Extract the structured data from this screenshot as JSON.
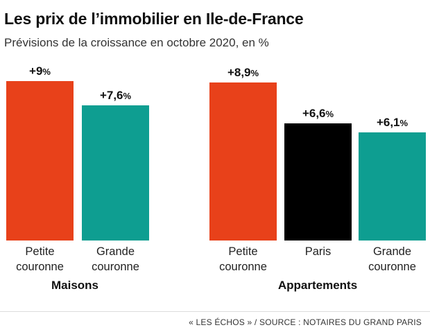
{
  "title": "Les prix de l’immobilier en Ile-de-France",
  "subtitle": "Prévisions de la croissance en octobre 2020, en %",
  "source": "« LES ÉCHOS » / SOURCE : NOTAIRES DU GRAND PARIS",
  "colors": {
    "petite_couronne": "#e8411a",
    "grande_couronne": "#0e9e91",
    "paris": "#000000"
  },
  "chart_data": [
    {
      "type": "bar",
      "group": "Maisons",
      "categories": [
        {
          "label_lines": [
            "Petite",
            "couronne"
          ],
          "value": 9,
          "label_num": "+9",
          "color": "#e8411a"
        },
        {
          "label_lines": [
            "Grande",
            "couronne"
          ],
          "value": 7.6,
          "label_num": "+7,6",
          "color": "#0e9e91"
        }
      ],
      "unit": "%",
      "ylim": [
        0,
        10
      ]
    },
    {
      "type": "bar",
      "group": "Appartements",
      "categories": [
        {
          "label_lines": [
            "Petite",
            "couronne"
          ],
          "value": 8.9,
          "label_num": "+8,9",
          "color": "#e8411a"
        },
        {
          "label_lines": [
            "Paris"
          ],
          "value": 6.6,
          "label_num": "+6,6",
          "color": "#000000"
        },
        {
          "label_lines": [
            "Grande",
            "couronne"
          ],
          "value": 6.1,
          "label_num": "+6,1",
          "color": "#0e9e91"
        }
      ],
      "unit": "%",
      "ylim": [
        0,
        10
      ]
    }
  ]
}
